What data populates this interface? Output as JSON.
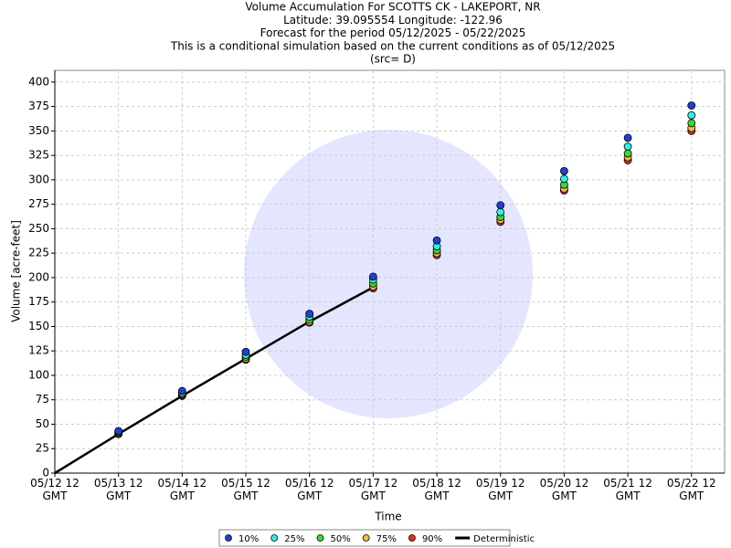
{
  "chart_data": {
    "type": "line",
    "title": [
      "Volume Accumulation For SCOTTS CK - LAKEPORT, NR",
      "Latitude: 39.095554 Longitude: -122.96",
      "Forecast for the period 05/12/2025 - 05/22/2025",
      "This is a conditional simulation based on the current conditions as of 05/12/2025",
      "(src= D)"
    ],
    "x_label": "Time",
    "y_label": "Volume [acre-feet]",
    "categories": [
      "05/12 12 GMT",
      "05/13 12 GMT",
      "05/14 12 GMT",
      "05/15 12 GMT",
      "05/16 12 GMT",
      "05/17 12 GMT",
      "05/18 12 GMT",
      "05/19 12 GMT",
      "05/20 12 GMT",
      "05/21 12 GMT",
      "05/22 12 GMT"
    ],
    "xlim": [
      0,
      10.52
    ],
    "ylim": [
      0,
      412
    ],
    "yticks": [
      0,
      25,
      50,
      75,
      100,
      125,
      150,
      175,
      200,
      225,
      250,
      275,
      300,
      325,
      350,
      375,
      400
    ],
    "grid": true,
    "series": [
      {
        "name": "10%",
        "color": "#1f3fd8",
        "style": "marker",
        "values": [
          null,
          43,
          84,
          124,
          163,
          201,
          238,
          274,
          309,
          343,
          376
        ]
      },
      {
        "name": "25%",
        "color": "#33eeee",
        "style": "marker",
        "values": [
          null,
          42,
          82,
          121,
          160,
          198,
          232,
          267,
          301,
          334,
          366
        ]
      },
      {
        "name": "50%",
        "color": "#33dd33",
        "style": "marker",
        "values": [
          null,
          41,
          81,
          119,
          157,
          194,
          228,
          262,
          295,
          327,
          358
        ]
      },
      {
        "name": "75%",
        "color": "#f0c040",
        "style": "marker",
        "values": [
          null,
          40,
          80,
          117,
          155,
          191,
          225,
          259,
          291,
          323,
          353
        ]
      },
      {
        "name": "90%",
        "color": "#e03020",
        "style": "marker",
        "values": [
          null,
          40,
          79,
          116,
          154,
          189,
          223,
          257,
          289,
          320,
          350
        ]
      },
      {
        "name": "Deterministic",
        "color": "#000000",
        "style": "line",
        "values": [
          0,
          40,
          79,
          117,
          155,
          190,
          null,
          null,
          null,
          null,
          null
        ]
      }
    ]
  }
}
